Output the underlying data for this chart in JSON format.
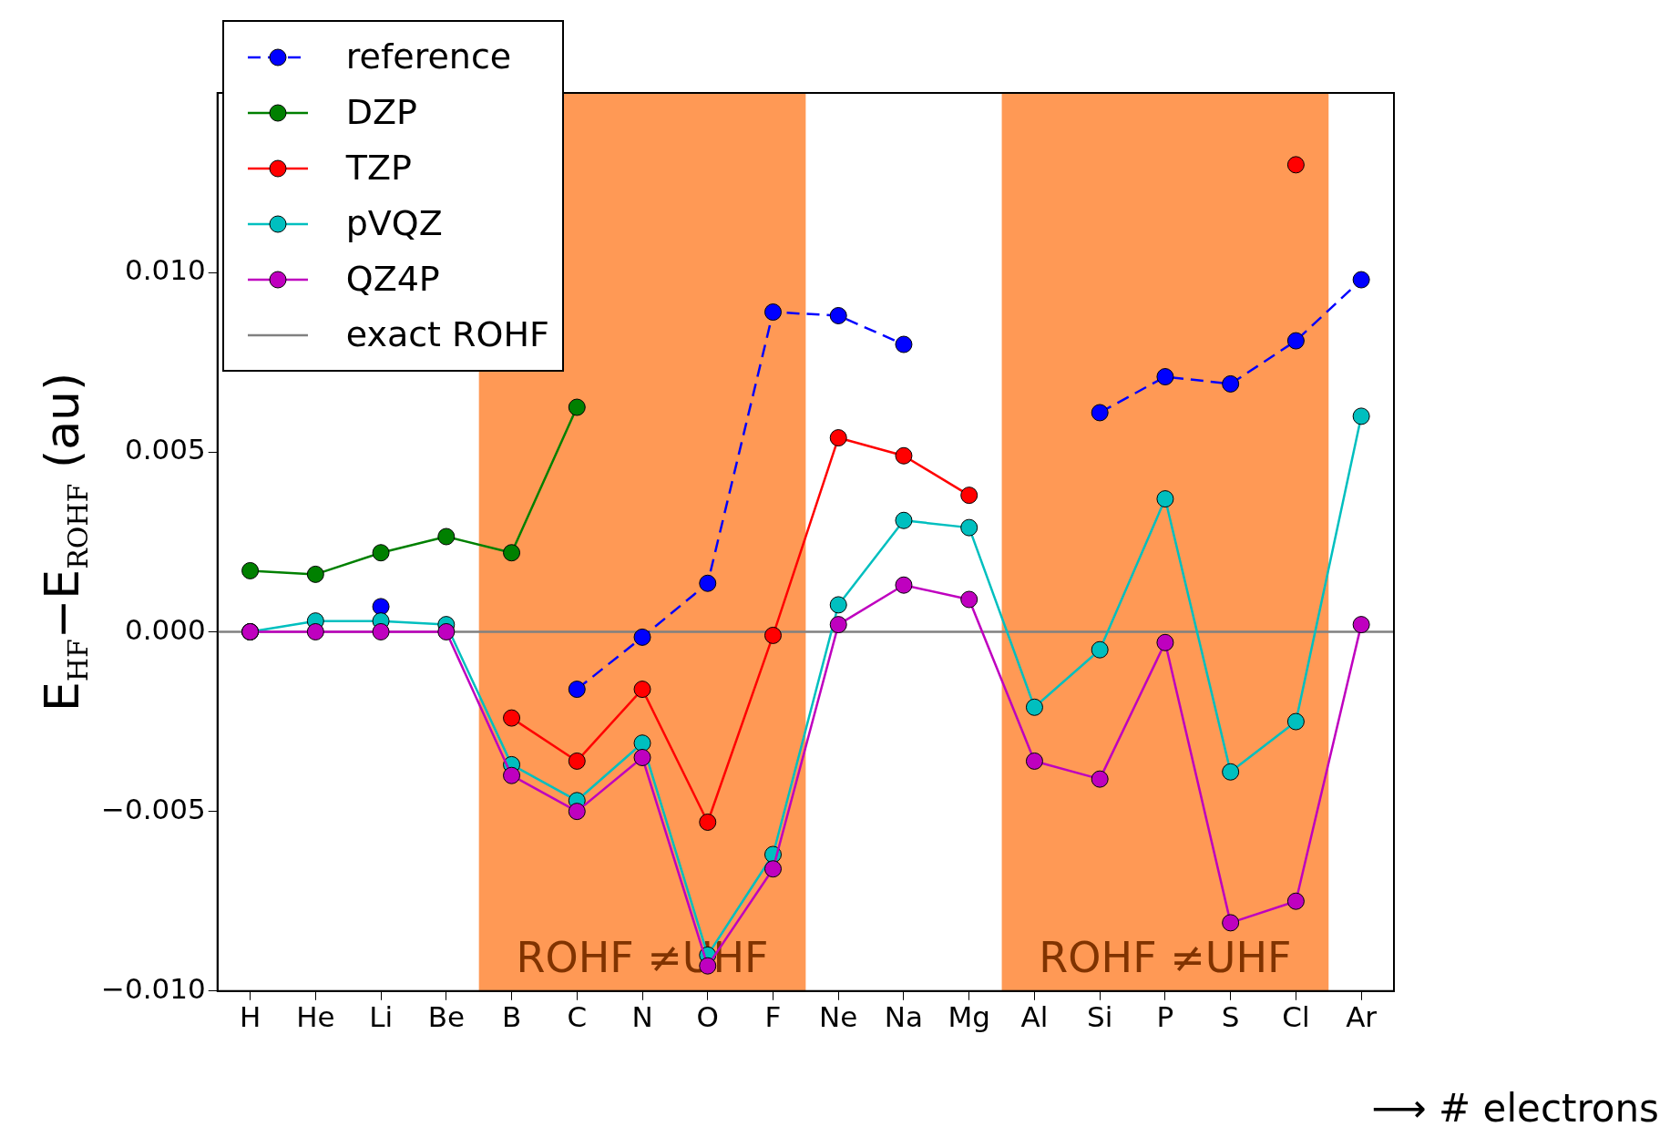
{
  "chart_data": {
    "type": "line",
    "ylabel": "E$_{HF}$−E$_{ROHF}$ (au)",
    "xlabel": "⟶ # electrons",
    "categories": [
      "H",
      "He",
      "Li",
      "Be",
      "B",
      "C",
      "N",
      "O",
      "F",
      "Ne",
      "Na",
      "Mg",
      "Al",
      "Si",
      "P",
      "S",
      "Cl",
      "Ar"
    ],
    "series": [
      {
        "name": "reference",
        "color": "#0000ff",
        "line_style": "dashed",
        "values": [
          0.0,
          null,
          0.0007,
          null,
          null,
          -0.0016,
          -0.00015,
          0.00135,
          0.0089,
          0.0088,
          0.008,
          null,
          null,
          0.0061,
          0.0071,
          0.0069,
          0.0081,
          0.0098
        ]
      },
      {
        "name": "DZP",
        "color": "#008000",
        "values": [
          0.0017,
          0.0016,
          0.0022,
          0.00265,
          0.0022,
          0.00625,
          null,
          null,
          null,
          null,
          null,
          null,
          null,
          null,
          null,
          null,
          null,
          null
        ]
      },
      {
        "name": "TZP",
        "color": "#ff0000",
        "values": [
          null,
          null,
          null,
          null,
          -0.0024,
          -0.0036,
          -0.0016,
          -0.0053,
          -0.0001,
          0.0054,
          0.0049,
          0.0038,
          null,
          null,
          null,
          null,
          0.013,
          null
        ]
      },
      {
        "name": "pVQZ",
        "color": "#00bfbf",
        "values": [
          0.0,
          0.0003,
          0.0003,
          0.0002,
          -0.0037,
          -0.0047,
          -0.0031,
          -0.009,
          -0.0062,
          0.00075,
          0.0031,
          0.0029,
          -0.0021,
          -0.0005,
          0.0037,
          -0.0039,
          -0.0025,
          0.006
        ]
      },
      {
        "name": "QZ4P",
        "color": "#bf00bf",
        "values": [
          0.0,
          0.0,
          0.0,
          0.0,
          -0.004,
          -0.005,
          -0.0035,
          -0.0093,
          -0.0066,
          0.0002,
          0.0013,
          0.0009,
          -0.0036,
          -0.0041,
          -0.0003,
          -0.0081,
          -0.0075,
          0.0002
        ]
      }
    ],
    "ylim": [
      -0.01,
      0.015
    ],
    "yticks": [
      {
        "value": -0.01,
        "label": "−0.010"
      },
      {
        "value": -0.005,
        "label": "−0.005"
      },
      {
        "value": 0,
        "label": "0.000"
      },
      {
        "value": 0.005,
        "label": "0.005"
      },
      {
        "value": 0.01,
        "label": "0.010"
      }
    ],
    "ref_lines": [
      {
        "axis": "y",
        "value": 0,
        "label": "exact ROHF",
        "color": "#808080"
      }
    ],
    "bands": [
      {
        "axis": "x",
        "from": "B",
        "to": "F",
        "label": "ROHF ≠UHF",
        "color": "#ff9955"
      },
      {
        "axis": "x",
        "from": "Al",
        "to": "Cl",
        "label": "ROHF ≠UHF",
        "color": "#ff9955"
      }
    ],
    "marker": "circle",
    "line_style": "solid",
    "grid": false,
    "legend": "top left"
  }
}
